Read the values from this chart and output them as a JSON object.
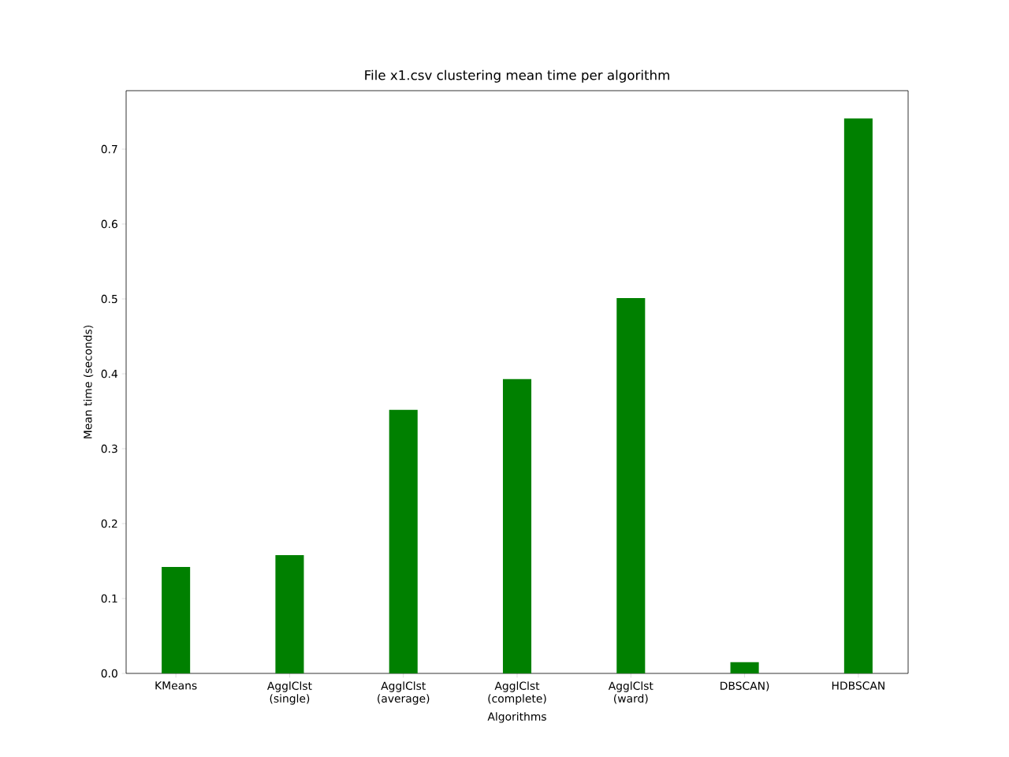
{
  "chart_data": {
    "type": "bar",
    "title": "File x1.csv clustering mean time per algorithm",
    "xlabel": "Algorithms",
    "ylabel": "Mean time (seconds)",
    "categories": [
      "KMeans",
      "AgglClst (single)",
      "AgglClst (average)",
      "AgglClst (complete)",
      "AgglClst (ward)",
      "DBSCAN)",
      "HDBSCAN"
    ],
    "values": [
      0.142,
      0.158,
      0.352,
      0.393,
      0.501,
      0.015,
      0.741
    ],
    "color": "#008000",
    "ylim": [
      0,
      0.778
    ],
    "yticks": [
      {
        "value": 0,
        "label": "0.0"
      },
      0.1,
      0.2,
      0.3,
      0.4,
      0.5,
      0.6,
      0.7
    ]
  }
}
